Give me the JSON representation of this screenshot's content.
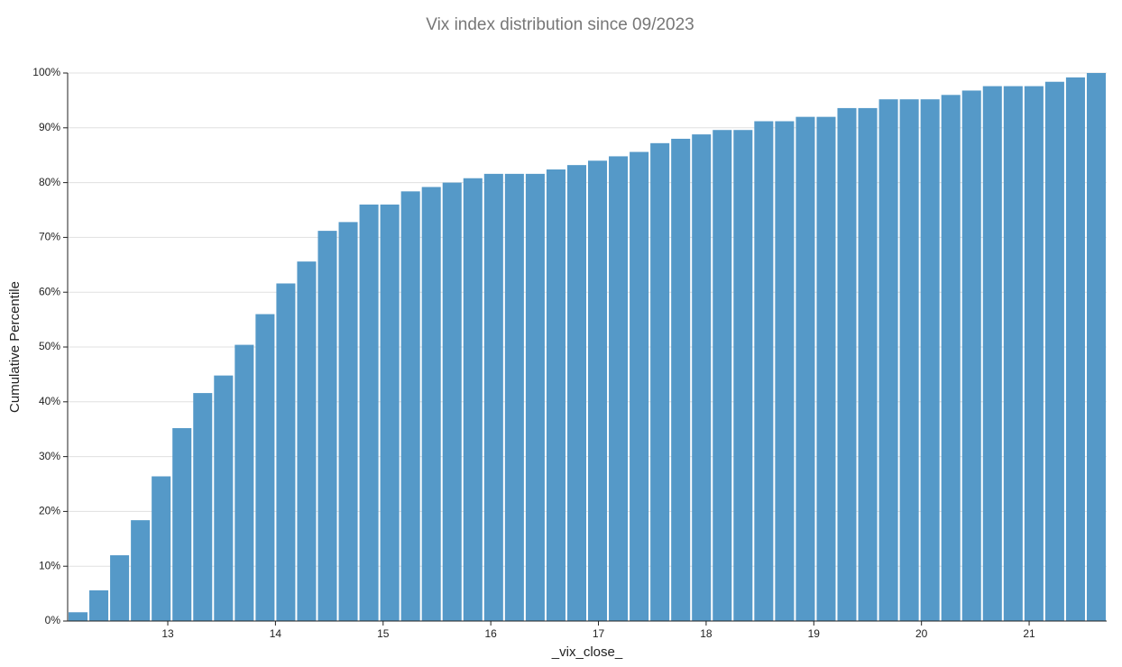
{
  "chart_data": {
    "type": "histogram",
    "title": "Vix index distribution since 09/2023",
    "xlabel": "_vix_close_",
    "ylabel": "Cumulative Percentile",
    "color": "#5599c8",
    "grid": true,
    "bins": [
      12.07,
      12.263,
      12.456,
      12.649,
      12.842,
      13.035,
      13.228,
      13.421,
      13.614,
      13.807,
      14.0,
      14.193,
      14.386,
      14.579,
      14.772,
      14.965,
      15.158,
      15.351,
      15.544,
      15.737,
      15.93,
      16.123,
      16.316,
      16.509,
      16.702,
      16.895,
      17.088,
      17.281,
      17.474,
      17.667,
      17.86,
      18.053,
      18.246,
      18.439,
      18.632,
      18.825,
      19.018,
      19.211,
      19.404,
      19.597,
      19.79,
      19.983,
      20.176,
      20.369,
      20.562,
      20.755,
      20.948,
      21.141,
      21.334,
      21.527,
      21.72
    ],
    "values": [
      1.6,
      5.6,
      12,
      18.4,
      26.4,
      35.2,
      41.6,
      44.8,
      50.4,
      56,
      61.6,
      65.6,
      71.2,
      72.8,
      76,
      76,
      78.4,
      79.2,
      80,
      80.8,
      81.6,
      81.6,
      81.6,
      82.4,
      83.2,
      84,
      84.8,
      85.6,
      87.2,
      88,
      88.8,
      89.6,
      89.6,
      91.2,
      91.2,
      92,
      92,
      93.6,
      93.6,
      95.2,
      95.2,
      95.2,
      96,
      96.8,
      97.6,
      97.6,
      97.6,
      98.4,
      99.2,
      100
    ],
    "xlim": [
      12.07,
      21.72
    ],
    "xticks": [
      13,
      14,
      15,
      16,
      17,
      18,
      19,
      20,
      21
    ],
    "ylim": [
      0,
      100
    ],
    "yticks": [
      {
        "value": 0,
        "label": "0%"
      },
      {
        "value": 10,
        "label": "10%"
      },
      {
        "value": 20,
        "label": "20%"
      },
      {
        "value": 30,
        "label": "30%"
      },
      {
        "value": 40,
        "label": "40%"
      },
      {
        "value": 50,
        "label": "50%"
      },
      {
        "value": 60,
        "label": "60%"
      },
      {
        "value": 70,
        "label": "70%"
      },
      {
        "value": 80,
        "label": "80%"
      },
      {
        "value": 90,
        "label": "90%"
      },
      {
        "value": 100,
        "label": "100%"
      }
    ]
  }
}
